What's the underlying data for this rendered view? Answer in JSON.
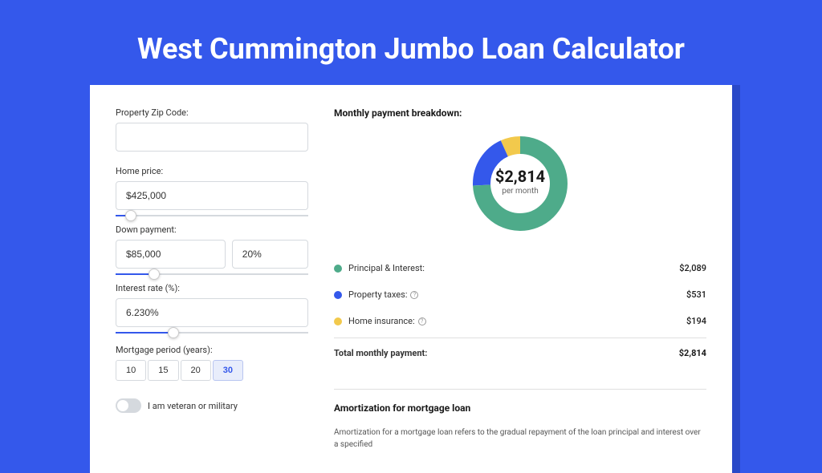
{
  "page": {
    "title": "West Cummington Jumbo Loan Calculator",
    "background_color": "#3458eb",
    "shadow_color": "#2a49c8"
  },
  "form": {
    "zip": {
      "label": "Property Zip Code:",
      "value": ""
    },
    "home_price": {
      "label": "Home price:",
      "value": "$425,000",
      "slider_pct": 8
    },
    "down_payment": {
      "label": "Down payment:",
      "amount": "$85,000",
      "percent": "20%",
      "slider_pct": 20
    },
    "interest": {
      "label": "Interest rate (%):",
      "value": "6.230%",
      "slider_pct": 30
    },
    "period": {
      "label": "Mortgage period (years):",
      "options": [
        "10",
        "15",
        "20",
        "30"
      ],
      "selected": "30"
    },
    "veteran": {
      "label": "I am veteran or military",
      "on": false
    }
  },
  "breakdown": {
    "title": "Monthly payment breakdown:",
    "donut": {
      "center_amount": "$2,814",
      "center_sub": "per month",
      "slices": [
        {
          "color": "#4eab8a",
          "pct": 74.2
        },
        {
          "color": "#3458eb",
          "pct": 18.9
        },
        {
          "color": "#f2c94c",
          "pct": 6.9
        }
      ],
      "stroke_width": 22,
      "radius": 48
    },
    "rows": [
      {
        "dot": "#4eab8a",
        "label": "Principal & Interest:",
        "info": false,
        "value": "$2,089"
      },
      {
        "dot": "#3458eb",
        "label": "Property taxes:",
        "info": true,
        "value": "$531"
      },
      {
        "dot": "#f2c94c",
        "label": "Home insurance:",
        "info": true,
        "value": "$194"
      }
    ],
    "total": {
      "label": "Total monthly payment:",
      "value": "$2,814"
    }
  },
  "amortization": {
    "title": "Amortization for mortgage loan",
    "text": "Amortization for a mortgage loan refers to the gradual repayment of the loan principal and interest over a specified"
  }
}
